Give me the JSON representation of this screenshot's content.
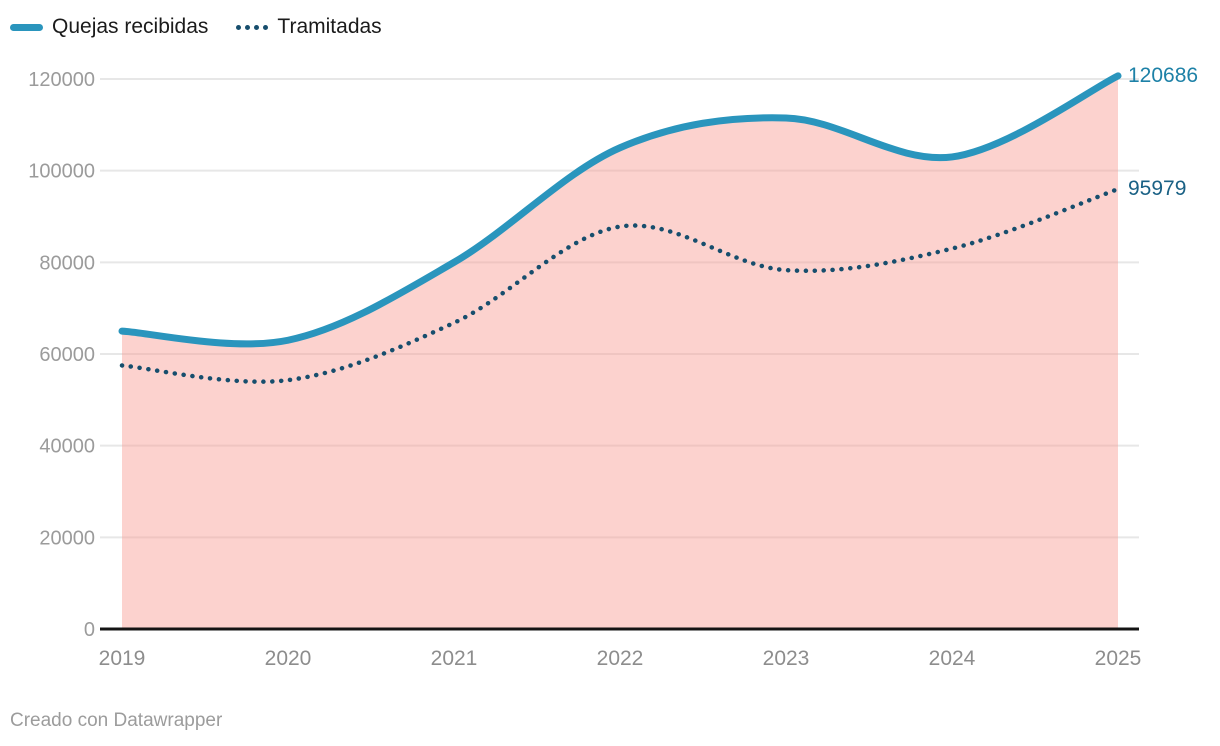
{
  "legend": {
    "items": [
      {
        "label": "Quejas recibidas",
        "swatch": "solid-line",
        "color": "#2a95bd"
      },
      {
        "label": "Tramitadas",
        "swatch": "dotted-line",
        "color": "#174e6d"
      }
    ]
  },
  "chart_data": {
    "type": "line",
    "title": "",
    "categories": [
      "2019",
      "2020",
      "2021",
      "2022",
      "2023",
      "2024",
      "2025"
    ],
    "series": [
      {
        "name": "Quejas recibidas",
        "values": [
          65000,
          63000,
          80000,
          105000,
          111500,
          103000,
          120686
        ],
        "color": "#2a95bd",
        "style": "solid",
        "area_fill": "rgba(248,155,146,0.45)",
        "end_label": "120686",
        "end_label_color": "#1d81a7"
      },
      {
        "name": "Tramitadas",
        "values": [
          57500,
          54300,
          66800,
          87800,
          78300,
          83000,
          95979
        ],
        "color": "#174e6d",
        "style": "dotted",
        "end_label": "95979",
        "end_label_color": "#1a6185"
      }
    ],
    "ylim": [
      0,
      120000
    ],
    "y_ticks": [
      0,
      20000,
      40000,
      60000,
      80000,
      100000,
      120000
    ],
    "grid": true,
    "gridline_color": "#e7e7e7",
    "axis_line_color": "#141414",
    "y_tick_label_color": "#9b9b9b",
    "x_tick_label_color": "#8d8d8d",
    "legend_position": "top-left",
    "xlabel": "",
    "ylabel": ""
  },
  "footer": {
    "credit": "Creado con Datawrapper"
  }
}
